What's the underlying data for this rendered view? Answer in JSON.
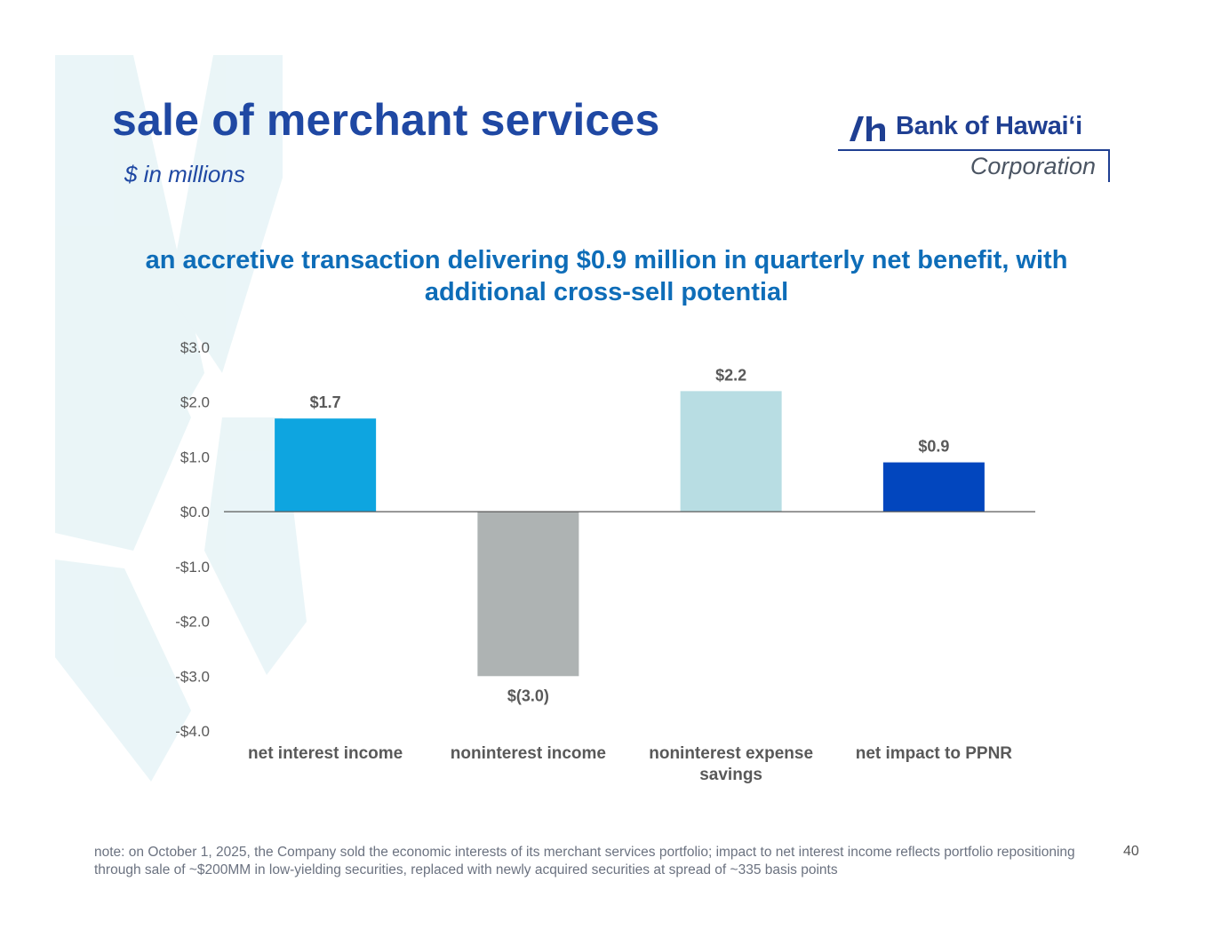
{
  "slide": {
    "title": "sale of merchant services",
    "subtitle": "$ in millions",
    "headline": "an accretive transaction delivering $0.9 million in quarterly net benefit, with additional cross-sell potential",
    "note": "note: on October 1, 2025, the Company sold the economic interests of its merchant services portfolio; impact to net interest income reflects portfolio repositioning through sale of ~$200MM in low-yielding securities, replaced with newly acquired securities at spread of ~335 basis points",
    "page_number": "40"
  },
  "logo": {
    "name": "Bank of Hawaiʻi",
    "corporation": "Corporation",
    "icon": "bank-of-hawaii-logo-mark"
  },
  "colors": {
    "title": "#1f48a3",
    "headline": "#0e6db8",
    "bar_net_interest_income": "#0ea5e0",
    "bar_noninterest_income": "#aeb3b3",
    "bar_noninterest_expense_savings": "#b8dde3",
    "bar_net_impact": "#0246be",
    "axis_text": "#595959",
    "label_text": "#595959"
  },
  "chart_data": {
    "type": "bar",
    "title": "",
    "xlabel": "",
    "ylabel": "",
    "ylim": [
      -4.0,
      3.0
    ],
    "yticks": [
      3.0,
      2.0,
      1.0,
      0.0,
      -1.0,
      -2.0,
      -3.0,
      -4.0
    ],
    "ytick_labels": [
      "$3.0",
      "$2.0",
      "$1.0",
      "$0.0",
      "-$1.0",
      "-$2.0",
      "-$3.0",
      "-$4.0"
    ],
    "grid": false,
    "legend": "none",
    "categories": [
      [
        "net interest income"
      ],
      [
        "noninterest income"
      ],
      [
        "noninterest expense",
        "savings"
      ],
      [
        "net impact to PPNR"
      ]
    ],
    "values": [
      1.7,
      -3.0,
      2.2,
      0.9
    ],
    "data_labels": [
      "$1.7",
      "$(3.0)",
      "$2.2",
      "$0.9"
    ],
    "bar_colors": [
      "#0ea5e0",
      "#aeb3b3",
      "#b8dde3",
      "#0246be"
    ]
  }
}
